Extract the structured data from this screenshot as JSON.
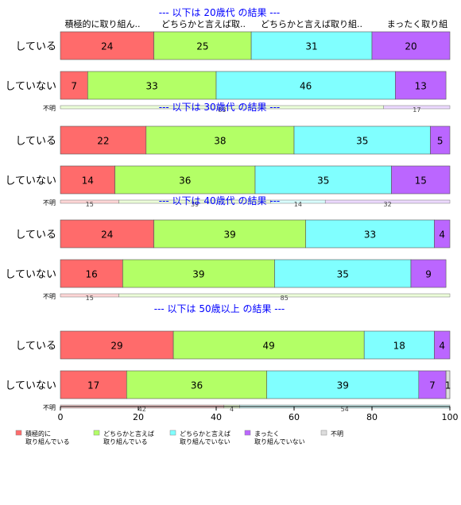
{
  "chart_data": {
    "type": "bar",
    "stacked": true,
    "orientation": "horizontal",
    "xlim": [
      0,
      100
    ],
    "xticks": [
      0,
      20,
      40,
      60,
      80,
      100
    ],
    "column_headers": [
      "積極的に取り組ん..",
      "どちらかと言えば取..",
      "どちらかと言えば取り組..",
      "まったく取り組",
      "不明"
    ],
    "legend": [
      {
        "label": "積極的に\n取り組んでいる",
        "color": "#ff6b6b"
      },
      {
        "label": "どちらかと言えば\n取り組んでいる",
        "color": "#b3ff66"
      },
      {
        "label": "どちらかと言えば\n取り組んでいない",
        "color": "#80ffff"
      },
      {
        "label": "まったく\n取り組んでいない",
        "color": "#bb66ff"
      },
      {
        "label": "不明",
        "color": "#dddddd"
      }
    ],
    "groups": [
      {
        "title": "--- 以下は 20歳代 の結果 ---",
        "rows": [
          {
            "label": "している",
            "values": [
              24,
              25,
              31,
              20,
              0
            ]
          },
          {
            "label": "していない",
            "values": [
              7,
              33,
              46,
              13,
              0
            ]
          }
        ],
        "unknown": {
          "label": "不明",
          "values": [
            0,
            83,
            0,
            17,
            0
          ]
        }
      },
      {
        "title": "--- 以下は 30歳代 の結果 ---",
        "rows": [
          {
            "label": "している",
            "values": [
              22,
              38,
              35,
              5,
              0
            ]
          },
          {
            "label": "していない",
            "values": [
              14,
              36,
              35,
              15,
              0
            ]
          }
        ],
        "unknown": {
          "label": "不明",
          "values": [
            15,
            39,
            14,
            32,
            0
          ]
        }
      },
      {
        "title": "--- 以下は 40歳代 の結果 ---",
        "rows": [
          {
            "label": "している",
            "values": [
              24,
              39,
              33,
              4,
              0
            ]
          },
          {
            "label": "していない",
            "values": [
              16,
              39,
              35,
              9,
              0
            ]
          }
        ],
        "unknown": {
          "label": "不明",
          "values": [
            15,
            85,
            0,
            0,
            0
          ]
        }
      },
      {
        "title": "--- 以下は 50歳以上 の結果 ---",
        "rows": [
          {
            "label": "している",
            "values": [
              29,
              49,
              18,
              4,
              0
            ]
          },
          {
            "label": "していない",
            "values": [
              17,
              36,
              39,
              7,
              1
            ]
          }
        ],
        "unknown": {
          "label": "不明",
          "values": [
            42,
            4,
            54,
            0,
            0
          ]
        }
      }
    ]
  }
}
